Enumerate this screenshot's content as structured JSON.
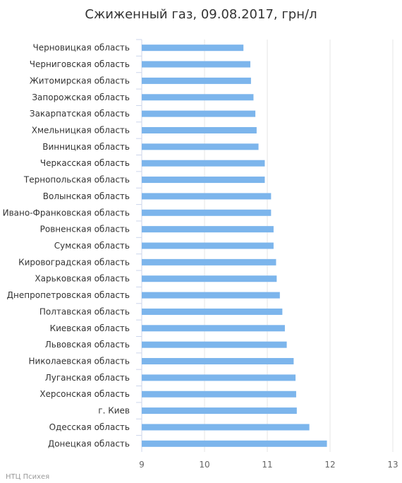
{
  "chart_data": {
    "type": "bar",
    "orientation": "horizontal",
    "title": "Сжиженный газ, 09.08.2017, грн/л",
    "categories": [
      "Черновицкая область",
      "Черниговская область",
      "Житомирская область",
      "Запорожская область",
      "Закарпатская область",
      "Хмельницкая область",
      "Винницкая область",
      "Черкасская область",
      "Тернопольская область",
      "Волынская область",
      "Ивано-Франковская область",
      "Ровненская область",
      "Сумская область",
      "Кировоградская область",
      "Харьковская область",
      "Днепропетровская область",
      "Полтавская область",
      "Киевская область",
      "Львовская область",
      "Николаевская область",
      "Луганская область",
      "Херсонская область",
      "г. Киев",
      "Одесская область",
      "Донецкая область"
    ],
    "values": [
      10.62,
      10.73,
      10.74,
      10.78,
      10.81,
      10.83,
      10.86,
      10.96,
      10.96,
      11.06,
      11.06,
      11.1,
      11.1,
      11.14,
      11.15,
      11.2,
      11.24,
      11.28,
      11.31,
      11.42,
      11.45,
      11.46,
      11.47,
      11.67,
      11.95
    ],
    "xlim": [
      9,
      13
    ],
    "xticks": [
      "9",
      "10",
      "11",
      "12",
      "13"
    ],
    "grid": true,
    "bar_color": "#7cb5ec",
    "grid_color": "#e6e6e6"
  },
  "credit": "НТЦ Психея"
}
